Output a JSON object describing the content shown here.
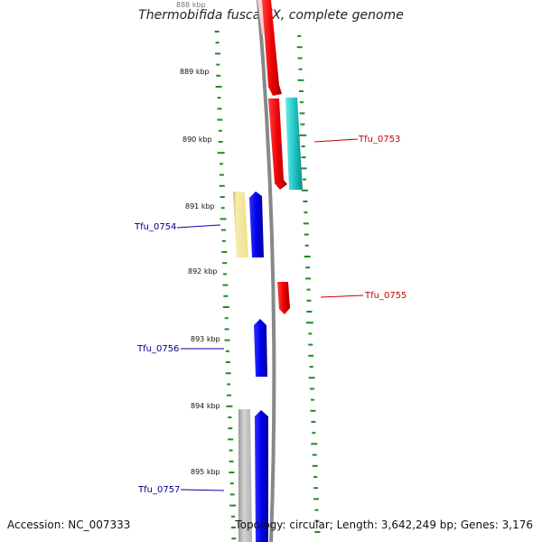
{
  "title": "Thermobifida fusca YX, complete genome",
  "top_partial_label": "888 kbp",
  "ticks": [
    "889 kbp",
    "890 kbp",
    "891 kbp",
    "892 kbp",
    "893 kbp",
    "894 kbp",
    "895 kbp"
  ],
  "genes": [
    {
      "id": "Tfu_0753",
      "strand": "reverse",
      "color": "#cc0000"
    },
    {
      "id": "Tfu_0754",
      "strand": "forward",
      "color": "#00008b"
    },
    {
      "id": "Tfu_0755",
      "strand": "reverse",
      "color": "#cc0000"
    },
    {
      "id": "Tfu_0756",
      "strand": "forward",
      "color": "#00008b"
    },
    {
      "id": "Tfu_0757",
      "strand": "forward",
      "color": "#00008b"
    }
  ],
  "footer": {
    "accession": "Accession: NC_007333",
    "topology": "Topology: circular; Length: 3,642,249 bp; Genes: 3,176"
  },
  "colors": {
    "forward_cds": "#0000ee",
    "reverse_cds": "#ee0000",
    "rna": "#20c8c8",
    "other_feature": "#f0e49a",
    "pseudo_gray": "#c0c0c0",
    "backbone": "#888888",
    "gc_ticks": "#228b22"
  }
}
